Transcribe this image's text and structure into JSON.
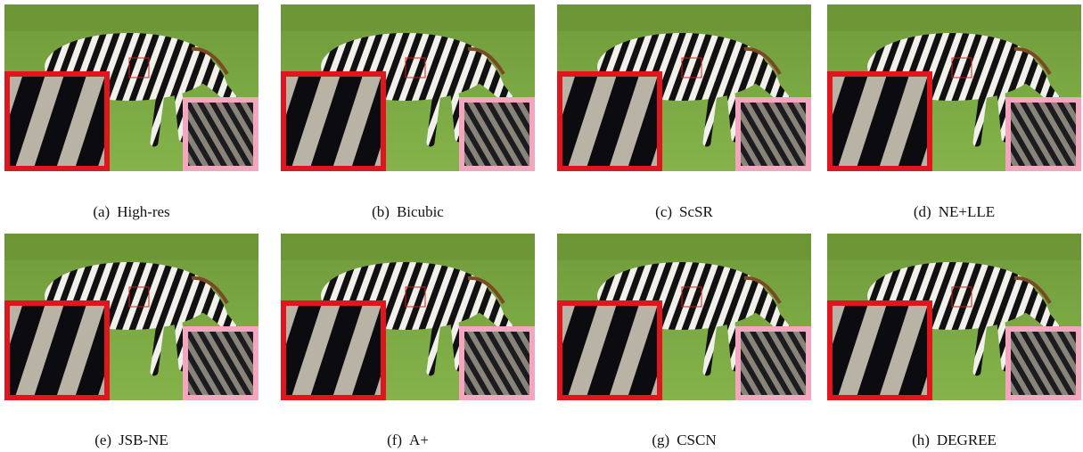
{
  "figure": {
    "panels": [
      {
        "label": "(a)",
        "caption": "High-res"
      },
      {
        "label": "(b)",
        "caption": "Bicubic"
      },
      {
        "label": "(c)",
        "caption": "ScSR"
      },
      {
        "label": "(d)",
        "caption": "NE+LLE"
      },
      {
        "label": "(e)",
        "caption": "JSB-NE"
      },
      {
        "label": "(f)",
        "caption": "A+"
      },
      {
        "label": "(g)",
        "caption": "CSCN"
      },
      {
        "label": "(h)",
        "caption": "DEGREE"
      }
    ]
  }
}
